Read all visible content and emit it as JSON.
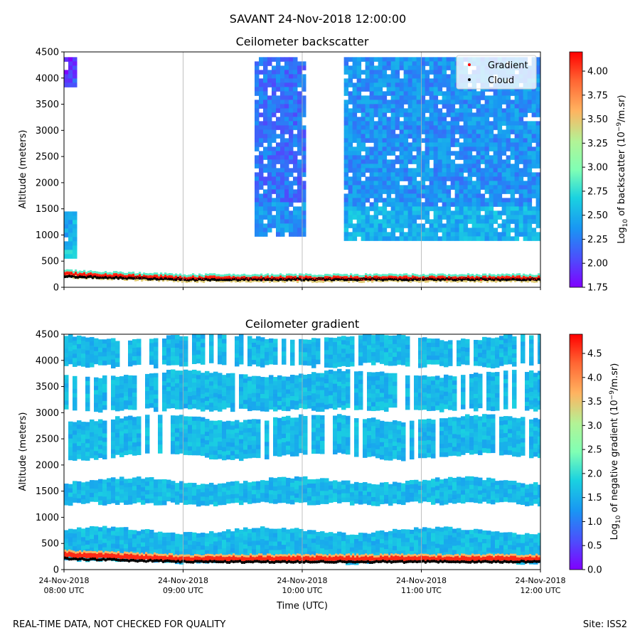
{
  "figure": {
    "suptitle": "SAVANT 24-Nov-2018 12:00:00",
    "footer_left": "REAL-TIME DATA, NOT CHECKED FOR QUALITY",
    "footer_right": "Site: ISS2"
  },
  "chart_data": [
    {
      "type": "heatmap",
      "title": "Ceilometer backscatter",
      "xlabel": "",
      "ylabel": "Altitude (meters)",
      "ylim": [
        0,
        4500
      ],
      "yticks": [
        0,
        500,
        1000,
        1500,
        2000,
        2500,
        3000,
        3500,
        4000,
        4500
      ],
      "xlim": [
        8,
        12
      ],
      "xticks": [
        8,
        9,
        10,
        11,
        12
      ],
      "grid": "vertical at x ticks",
      "legend": {
        "position": "top-right",
        "entries": [
          {
            "label": "Gradient",
            "color": "#ff0000",
            "marker": "dot"
          },
          {
            "label": "Cloud",
            "color": "#000000",
            "marker": "dot"
          }
        ]
      },
      "colorbar": {
        "label_prefix": "Log",
        "label_sub": "10",
        "label_mid": " of backscatter (10",
        "label_sup": "−9",
        "label_suffix": "/m.sr)",
        "range": [
          1.75,
          4.2
        ],
        "ticks": [
          "1.75",
          "2.00",
          "2.25",
          "2.50",
          "2.75",
          "3.00",
          "3.25",
          "3.50",
          "3.75",
          "4.00"
        ]
      },
      "features": {
        "cloud_blobs": [
          {
            "x0": 9.6,
            "x1": 10.0,
            "y0": 1000,
            "y1": 4400,
            "level": 2.2
          },
          {
            "x0": 10.35,
            "x1": 12.0,
            "y0": 900,
            "y1": 4400,
            "level": 2.35
          },
          {
            "x0": 8.0,
            "x1": 8.08,
            "y0": 600,
            "y1": 1450,
            "level": 2.5
          },
          {
            "x0": 8.0,
            "x1": 8.08,
            "y0": 3900,
            "y1": 4400,
            "level": 1.9
          }
        ],
        "boundary_layer_top_m": 250,
        "cloud_base_m": 150
      }
    },
    {
      "type": "heatmap",
      "title": "Ceilometer gradient",
      "xlabel": "Time (UTC)",
      "ylabel": "Altitude (meters)",
      "ylim": [
        0,
        4500
      ],
      "yticks": [
        0,
        500,
        1000,
        1500,
        2000,
        2500,
        3000,
        3500,
        4000,
        4500
      ],
      "xlim": [
        8,
        12
      ],
      "xticks": [
        8,
        9,
        10,
        11,
        12
      ],
      "xticklabels": [
        [
          "24-Nov-2018",
          "08:00 UTC"
        ],
        [
          "24-Nov-2018",
          "09:00 UTC"
        ],
        [
          "24-Nov-2018",
          "10:00 UTC"
        ],
        [
          "24-Nov-2018",
          "11:00 UTC"
        ],
        [
          "24-Nov-2018",
          "12:00 UTC"
        ]
      ],
      "grid": "vertical at x ticks",
      "colorbar": {
        "label_prefix": "Log",
        "label_sub": "10",
        "label_mid": " of negative gradient (10",
        "label_sup": "−9",
        "label_suffix": "/m.sr)",
        "range": [
          0.0,
          4.9
        ],
        "ticks": [
          "0.0",
          "0.5",
          "1.0",
          "1.5",
          "2.0",
          "2.5",
          "3.0",
          "3.5",
          "4.0",
          "4.5"
        ]
      },
      "features": {
        "layers_m": [
          {
            "y0": 3950,
            "y1": 4450
          },
          {
            "y0": 3100,
            "y1": 3750
          },
          {
            "y0": 2200,
            "y1": 2900
          },
          {
            "y0": 1300,
            "y1": 1700
          },
          {
            "y0": 200,
            "y1": 750
          }
        ],
        "boundary_layer_top_m": 250,
        "cloud_base_m": 150
      }
    }
  ]
}
